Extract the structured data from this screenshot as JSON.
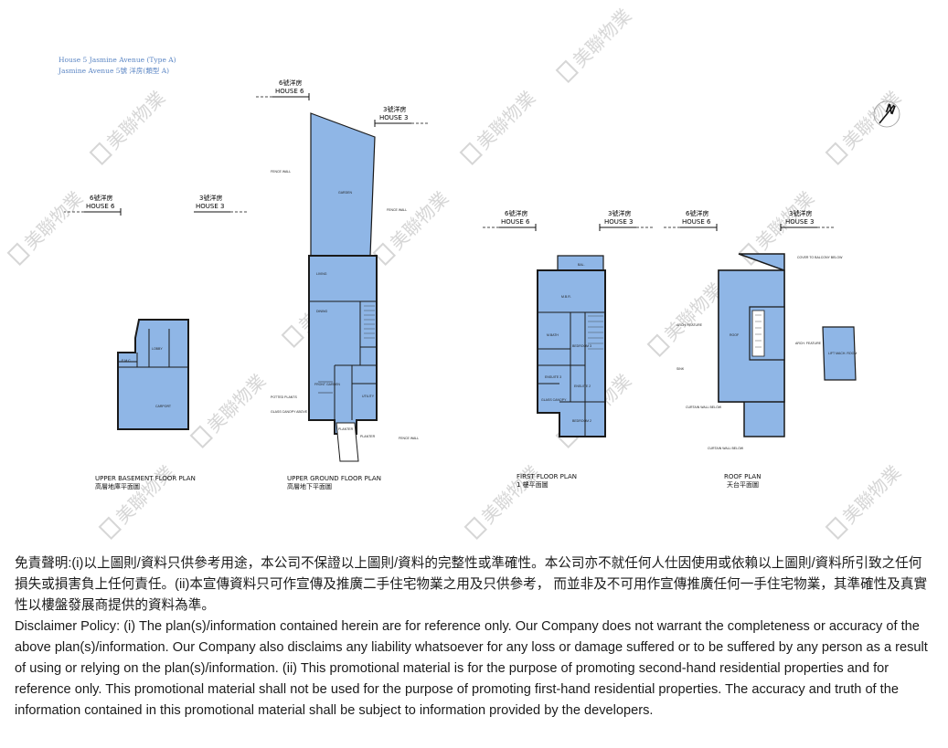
{
  "header": {
    "title_en": "House 5 Jasmine Avenue (Type A)",
    "title_zh": "Jasmine Avenue 5號 洋房(類型 A)"
  },
  "colors": {
    "floor_fill": "#8fb6e6",
    "wall": "#1a1a1a",
    "header_text": "#5b86c4",
    "watermark": "#c9c9c9"
  },
  "watermark": {
    "text": "美聯物業",
    "icon": "midland-logo-icon"
  },
  "compass": {
    "label": "N"
  },
  "plans": [
    {
      "id": "upper-basement",
      "title_en": "UPPER BASEMENT FLOOR PLAN",
      "title_zh": "高層地庫平面圖",
      "house_left_zh": "6號洋房",
      "house_left_en": "HOUSE 6",
      "house_right_zh": "3號洋房",
      "house_right_en": "HOUSE 3",
      "rooms": [
        "LOBBY",
        "CARPORT",
        "E.M.C."
      ]
    },
    {
      "id": "upper-ground",
      "title_en": "UPPER GROUND FLOOR PLAN",
      "title_zh": "高層地下平面圖",
      "house_left_zh": "6號洋房",
      "house_left_en": "HOUSE 6",
      "house_right_zh": "3號洋房",
      "house_right_en": "HOUSE 3",
      "rooms": [
        "GARDEN",
        "LIVING",
        "DINING",
        "FRONT GARDEN",
        "UTILITY",
        "PLANTER"
      ],
      "callouts": [
        "FENCE WALL",
        "FENCE WALL",
        "POTTED PLANTS",
        "GLASS CANOPY ABOVE",
        "FENCE WALL",
        "PLANTER"
      ]
    },
    {
      "id": "first-floor",
      "title_en": "FIRST FLOOR PLAN",
      "title_zh": "1 樓平面圖",
      "house_left_zh": "6號洋房",
      "house_left_en": "HOUSE 6",
      "house_right_zh": "3號洋房",
      "house_right_en": "HOUSE 3",
      "rooms": [
        "BAL.",
        "M.B.R.",
        "M.BATH",
        "BEDROOM 3",
        "ENSUITE 3",
        "ENSUITE 2",
        "BEDROOM 2",
        "GLASS CANOPY"
      ]
    },
    {
      "id": "roof",
      "title_en": "ROOF PLAN",
      "title_zh": "天台平面圖",
      "house_left_zh": "6號洋房",
      "house_left_en": "HOUSE 6",
      "house_right_zh": "3號洋房",
      "house_right_en": "HOUSE 3",
      "rooms": [
        "ROOF",
        "LIFT MACH. ROOM"
      ],
      "callouts": [
        "COVER TO BALCONY BELOW",
        "ARCH. FEATURE",
        "ARCH. FEATURE",
        "SINK",
        "CURTAIN WALL BELOW",
        "CURTAIN WALL BELOW"
      ]
    }
  ],
  "disclaimer": {
    "zh": "免責聲明:(i)以上圖則/資料只供參考用途，本公司不保證以上圖則/資料的完整性或準確性。本公司亦不就任何人仕因使用或依賴以上圖則/資料所引致之任何損失或損害負上任何責任。(ii)本宣傳資料只可作宣傳及推廣二手住宅物業之用及只供參考， 而並非及不可用作宣傳推廣任何一手住宅物業，其準確性及真實性以樓盤發展商提供的資料為準。",
    "en": "Disclaimer Policy: (i) The plan(s)/information contained herein are for reference only. Our Company does not warrant the completeness or accuracy of the above plan(s)/information. Our Company also disclaims any liability whatsoever for any loss or damage suffered or to be suffered by any person as a result of using or relying on the plan(s)/information. (ii) This promotional material is for the purpose of promoting second-hand residential properties and for reference only. This promotional material shall not be used for the purpose of promoting first-hand residential properties. The accuracy and truth of the information contained in this promotional material shall be subject to information provided by the developers."
  }
}
